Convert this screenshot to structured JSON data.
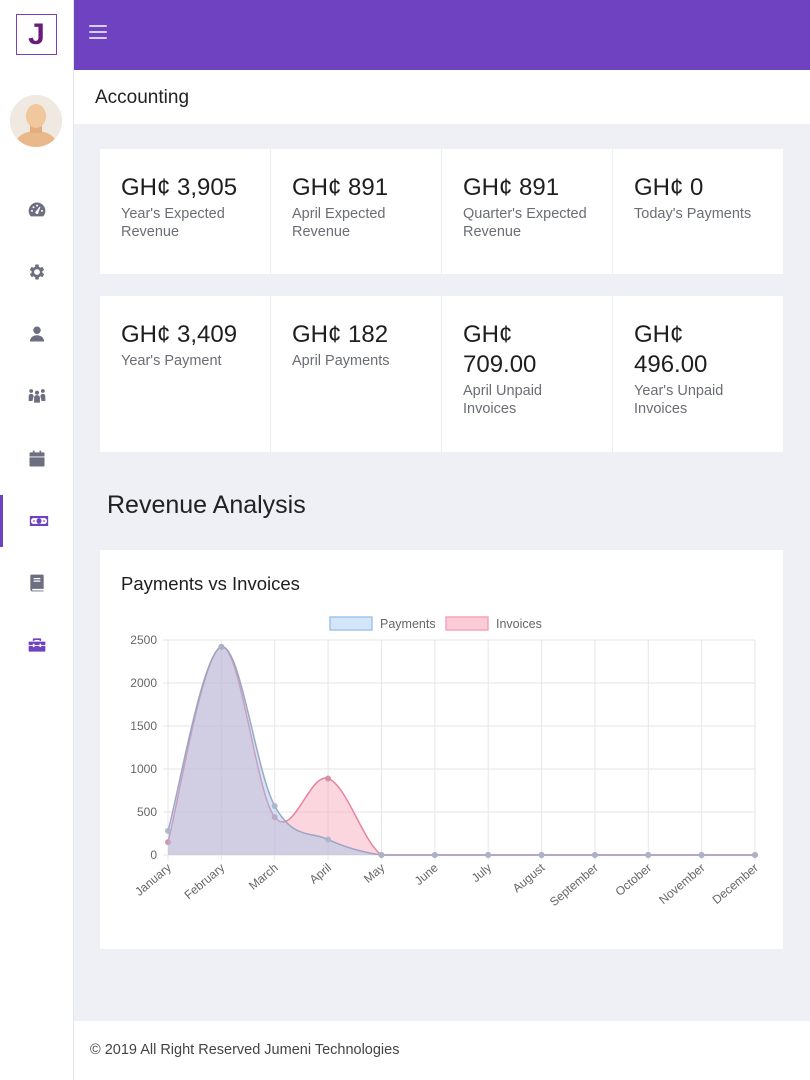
{
  "app": {
    "logo_letter": "J"
  },
  "sidebar": {
    "items": [
      {
        "name": "dashboard",
        "icon": "gauge-icon"
      },
      {
        "name": "settings",
        "icon": "gear-icon"
      },
      {
        "name": "user",
        "icon": "user-icon"
      },
      {
        "name": "group",
        "icon": "users-icon"
      },
      {
        "name": "calendar",
        "icon": "calendar-icon"
      },
      {
        "name": "accounting",
        "icon": "money-icon",
        "active": true
      },
      {
        "name": "book",
        "icon": "book-icon"
      },
      {
        "name": "toolbox",
        "icon": "toolbox-icon"
      }
    ]
  },
  "header": {
    "page_title": "Accounting"
  },
  "stats": {
    "row1": [
      {
        "value": "GH¢ 3,905",
        "label": "Year's Expected Revenue"
      },
      {
        "value": "GH¢ 891",
        "label": "April Expected Revenue"
      },
      {
        "value": "GH¢ 891",
        "label": "Quarter's Expected Revenue"
      },
      {
        "value": "GH¢ 0",
        "label": "Today's Payments"
      }
    ],
    "row2": [
      {
        "value": "GH¢ 3,409",
        "label": "Year's Payment"
      },
      {
        "value": "GH¢ 182",
        "label": "April Payments"
      },
      {
        "value": "GH¢ 709.00",
        "label": "April Unpaid Invoices"
      },
      {
        "value": "GH¢ 496.00",
        "label": "Year's Unpaid Invoices"
      }
    ]
  },
  "section": {
    "title": "Revenue Analysis"
  },
  "chart_card": {
    "title": "Payments vs Invoices"
  },
  "chart_data": {
    "type": "area",
    "title": "Payments vs Invoices",
    "categories": [
      "January",
      "February",
      "March",
      "April",
      "May",
      "June",
      "July",
      "August",
      "September",
      "October",
      "November",
      "December"
    ],
    "series": [
      {
        "name": "Payments",
        "values": [
          280,
          2420,
          570,
          180,
          0,
          0,
          0,
          0,
          0,
          0,
          0,
          0
        ],
        "color": "#9ec5eb"
      },
      {
        "name": "Invoices",
        "values": [
          150,
          2420,
          440,
          890,
          0,
          0,
          0,
          0,
          0,
          0,
          0,
          0
        ],
        "color": "#f7a3b8"
      }
    ],
    "ylim": [
      0,
      2500
    ],
    "yticks": [
      0,
      500,
      1000,
      1500,
      2000,
      2500
    ],
    "legend": "top-center",
    "grid": true
  },
  "footer": {
    "text": "© 2019 All Right Reserved Jumeni Technologies"
  },
  "colors": {
    "accent": "#6f42c1",
    "background": "#eef0f6"
  }
}
